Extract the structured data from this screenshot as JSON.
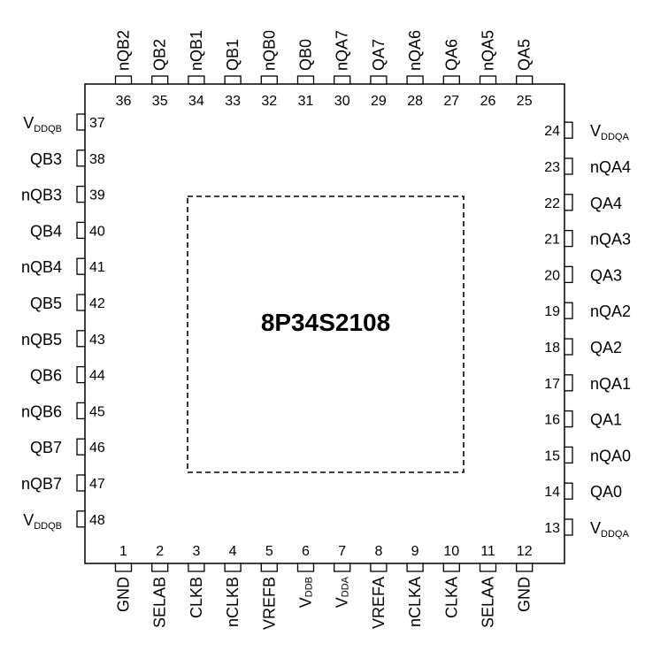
{
  "chip": {
    "part_number": "8P34S2108"
  },
  "pins": {
    "bottom": [
      {
        "num": "1",
        "label": "GND"
      },
      {
        "num": "2",
        "label": "SELAB"
      },
      {
        "num": "3",
        "label": "CLKB"
      },
      {
        "num": "4",
        "label": "nCLKB"
      },
      {
        "num": "5",
        "label": "VREFB"
      },
      {
        "num": "6",
        "label": "V",
        "sub": "DDB"
      },
      {
        "num": "7",
        "label": "V",
        "sub": "DDA"
      },
      {
        "num": "8",
        "label": "VREFA"
      },
      {
        "num": "9",
        "label": "nCLKA"
      },
      {
        "num": "10",
        "label": "CLKA"
      },
      {
        "num": "11",
        "label": "SELAA"
      },
      {
        "num": "12",
        "label": "GND"
      }
    ],
    "right": [
      {
        "num": "13",
        "label": "V",
        "sub": "DDQA"
      },
      {
        "num": "14",
        "label": "QA0"
      },
      {
        "num": "15",
        "label": "nQA0"
      },
      {
        "num": "16",
        "label": "QA1"
      },
      {
        "num": "17",
        "label": "nQA1"
      },
      {
        "num": "18",
        "label": "QA2"
      },
      {
        "num": "19",
        "label": "nQA2"
      },
      {
        "num": "20",
        "label": "QA3"
      },
      {
        "num": "21",
        "label": "nQA3"
      },
      {
        "num": "22",
        "label": "QA4"
      },
      {
        "num": "23",
        "label": "nQA4"
      },
      {
        "num": "24",
        "label": "V",
        "sub": "DDQA"
      }
    ],
    "top": [
      {
        "num": "25",
        "label": "QA5"
      },
      {
        "num": "26",
        "label": "nQA5"
      },
      {
        "num": "27",
        "label": "QA6"
      },
      {
        "num": "28",
        "label": "nQA6"
      },
      {
        "num": "29",
        "label": "QA7"
      },
      {
        "num": "30",
        "label": "nQA7"
      },
      {
        "num": "31",
        "label": "QB0"
      },
      {
        "num": "32",
        "label": "nQB0"
      },
      {
        "num": "33",
        "label": "QB1"
      },
      {
        "num": "34",
        "label": "nQB1"
      },
      {
        "num": "35",
        "label": "QB2"
      },
      {
        "num": "36",
        "label": "nQB2"
      }
    ],
    "left": [
      {
        "num": "37",
        "label": "V",
        "sub": "DDQB"
      },
      {
        "num": "38",
        "label": "QB3"
      },
      {
        "num": "39",
        "label": "nQB3"
      },
      {
        "num": "40",
        "label": "QB4"
      },
      {
        "num": "41",
        "label": "nQB4"
      },
      {
        "num": "42",
        "label": "QB5"
      },
      {
        "num": "43",
        "label": "nQB5"
      },
      {
        "num": "44",
        "label": "QB6"
      },
      {
        "num": "45",
        "label": "nQB6"
      },
      {
        "num": "46",
        "label": "QB7"
      },
      {
        "num": "47",
        "label": "nQB7"
      },
      {
        "num": "48",
        "label": "V",
        "sub": "DDQB"
      }
    ]
  }
}
